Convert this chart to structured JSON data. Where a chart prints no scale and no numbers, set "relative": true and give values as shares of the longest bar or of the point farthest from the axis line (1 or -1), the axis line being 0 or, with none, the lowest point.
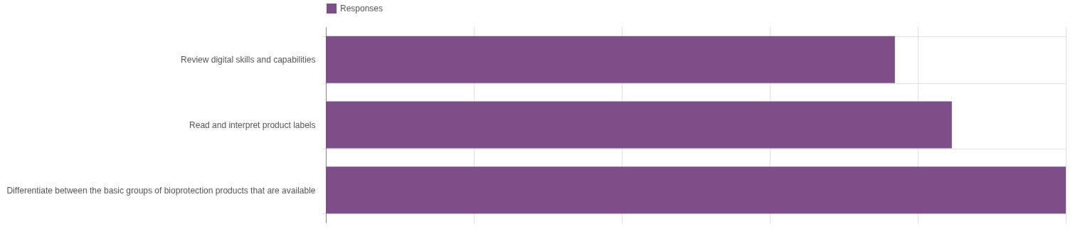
{
  "chart_data": {
    "type": "bar",
    "orientation": "horizontal",
    "relative": true,
    "categories": [
      "Review digital skills and capabilities",
      "Read and interpret product labels",
      "Differentiate between the basic groups of bioprotection products that are available"
    ],
    "series": [
      {
        "name": "Responses",
        "color": "#7d4e87",
        "values": [
          0.769,
          0.846,
          1
        ]
      }
    ],
    "grid": true,
    "legend": "top"
  }
}
